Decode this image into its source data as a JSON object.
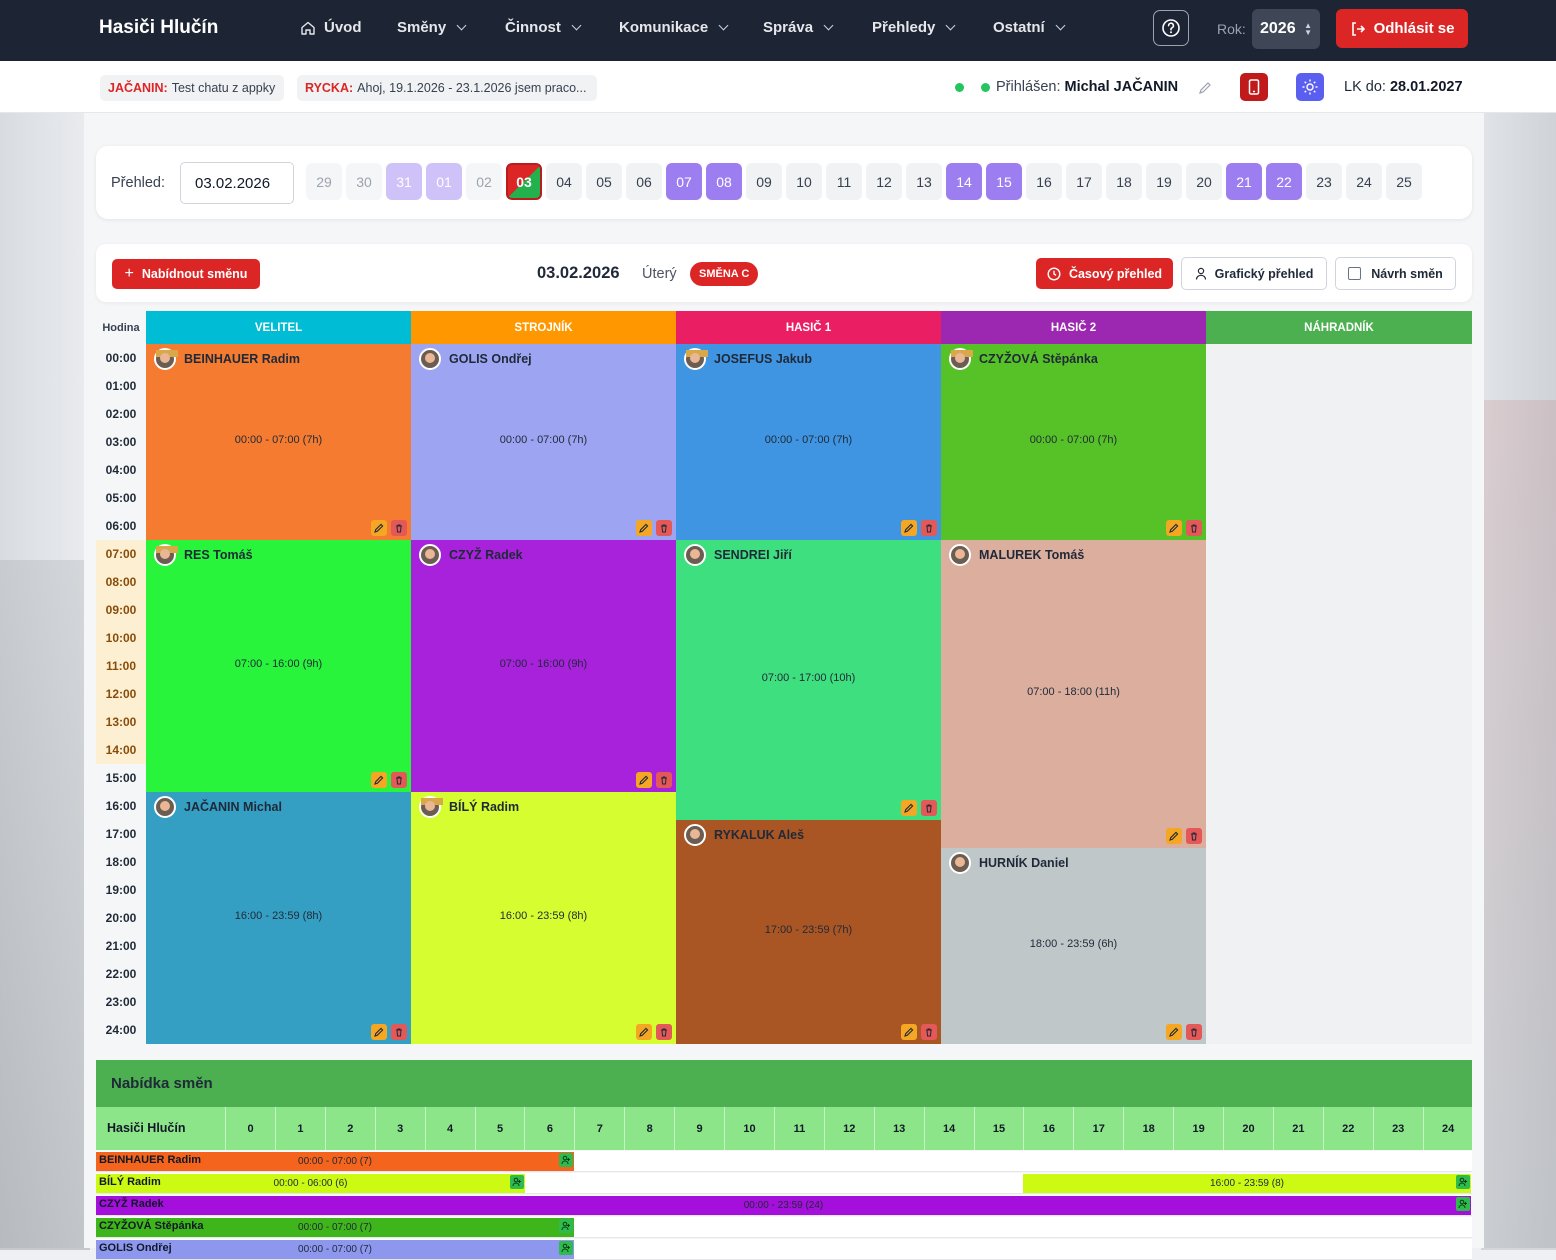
{
  "app": {
    "title": "Hasiči Hlučín"
  },
  "nav": [
    {
      "label": "Úvod",
      "icon": "home-icon",
      "dropdown": false
    },
    {
      "label": "Směny",
      "dropdown": true
    },
    {
      "label": "Činnost",
      "dropdown": true
    },
    {
      "label": "Komunikace",
      "dropdown": true
    },
    {
      "label": "Správa",
      "dropdown": true
    },
    {
      "label": "Přehledy",
      "dropdown": true
    },
    {
      "label": "Ostatní",
      "dropdown": true
    }
  ],
  "year": {
    "label": "Rok:",
    "value": "2026"
  },
  "logout_label": "Odhlásit se",
  "chat_chips": [
    {
      "author": "JAČANIN:",
      "text": "Test chatu z appky"
    },
    {
      "author": "RYCKA:",
      "text": "Ahoj, 19.1.2026 - 23.1.2026 jsem praco..."
    }
  ],
  "user": {
    "prefix": "Přihlášen:",
    "name": "Michal JAČANIN"
  },
  "lk": {
    "prefix": "LK do:",
    "value": "28.01.2027"
  },
  "overview": {
    "label": "Přehled:",
    "date": "03.02.2026",
    "days": [
      {
        "n": "29",
        "style": "muted"
      },
      {
        "n": "30",
        "style": "muted"
      },
      {
        "n": "31",
        "style": "purple-light"
      },
      {
        "n": "01",
        "style": "purple-light"
      },
      {
        "n": "02",
        "style": "muted"
      },
      {
        "n": "03",
        "style": "today"
      },
      {
        "n": "04",
        "style": ""
      },
      {
        "n": "05",
        "style": ""
      },
      {
        "n": "06",
        "style": ""
      },
      {
        "n": "07",
        "style": "purple"
      },
      {
        "n": "08",
        "style": "purple"
      },
      {
        "n": "09",
        "style": ""
      },
      {
        "n": "10",
        "style": ""
      },
      {
        "n": "11",
        "style": ""
      },
      {
        "n": "12",
        "style": ""
      },
      {
        "n": "13",
        "style": ""
      },
      {
        "n": "14",
        "style": "purple"
      },
      {
        "n": "15",
        "style": "purple"
      },
      {
        "n": "16",
        "style": ""
      },
      {
        "n": "17",
        "style": ""
      },
      {
        "n": "18",
        "style": ""
      },
      {
        "n": "19",
        "style": ""
      },
      {
        "n": "20",
        "style": ""
      },
      {
        "n": "21",
        "style": "purple"
      },
      {
        "n": "22",
        "style": "purple"
      },
      {
        "n": "23",
        "style": ""
      },
      {
        "n": "24",
        "style": ""
      },
      {
        "n": "25",
        "style": ""
      }
    ]
  },
  "toolbar": {
    "offer_label": "Nabídnout směnu",
    "date": "03.02.2026",
    "weekday": "Úterý",
    "shift_badge": "SMĚNA C",
    "time_overview_label": "Časový přehled",
    "graphic_overview_label": "Grafický přehled",
    "plan_label": "Návrh směn"
  },
  "schedule": {
    "hours_header": "Hodina",
    "hours": [
      "00:00",
      "01:00",
      "02:00",
      "03:00",
      "04:00",
      "05:00",
      "06:00",
      "07:00",
      "08:00",
      "09:00",
      "10:00",
      "11:00",
      "12:00",
      "13:00",
      "14:00",
      "15:00",
      "16:00",
      "17:00",
      "18:00",
      "19:00",
      "20:00",
      "21:00",
      "22:00",
      "23:00",
      "24:00"
    ],
    "day_hours": [
      "07:00",
      "08:00",
      "09:00",
      "10:00",
      "11:00",
      "12:00",
      "13:00",
      "14:00"
    ],
    "columns": [
      {
        "label": "VELITEL",
        "color": "#00bcd4"
      },
      {
        "label": "STROJNÍK",
        "color": "#ff9800"
      },
      {
        "label": "HASIČ 1",
        "color": "#e91e63"
      },
      {
        "label": "HASIČ 2",
        "color": "#9c27b0"
      },
      {
        "label": "NÁHRADNÍK",
        "color": "#4caf50"
      }
    ],
    "blocks": [
      {
        "col": 0,
        "start": 0,
        "end": 7,
        "name": "BEINHAUER Radim",
        "time": "00:00 - 07:00 (7h)",
        "color": "#f47b30",
        "avatar": "gold"
      },
      {
        "col": 0,
        "start": 7,
        "end": 16,
        "name": "RES Tomáš",
        "time": "07:00 - 16:00 (9h)",
        "color": "#27f43b",
        "avatar": "gold"
      },
      {
        "col": 0,
        "start": 16,
        "end": 25,
        "name": "JAČANIN Michal",
        "time": "16:00 - 23:59 (8h)",
        "color": "#359fc3",
        "avatar": ""
      },
      {
        "col": 1,
        "start": 0,
        "end": 7,
        "name": "GOLIS Ondřej",
        "time": "00:00 - 07:00 (7h)",
        "color": "#9da5f3",
        "avatar": ""
      },
      {
        "col": 1,
        "start": 7,
        "end": 16,
        "name": "CZYŽ Radek",
        "time": "07:00 - 16:00 (9h)",
        "color": "#a822dc",
        "avatar": ""
      },
      {
        "col": 1,
        "start": 16,
        "end": 25,
        "name": "BÍLÝ Radim",
        "time": "16:00 - 23:59 (8h)",
        "color": "#d6fd30",
        "avatar": "gold"
      },
      {
        "col": 2,
        "start": 0,
        "end": 7,
        "name": "JOSEFUS Jakub",
        "time": "00:00 - 07:00 (7h)",
        "color": "#3f95e1",
        "avatar": "gold"
      },
      {
        "col": 2,
        "start": 7,
        "end": 17,
        "name": "SENDREI Jiří",
        "time": "07:00 - 17:00 (10h)",
        "color": "#3edf7f",
        "avatar": ""
      },
      {
        "col": 2,
        "start": 17,
        "end": 25,
        "name": "RYKALUK Aleš",
        "time": "17:00 - 23:59 (7h)",
        "color": "#aa5624",
        "avatar": ""
      },
      {
        "col": 3,
        "start": 0,
        "end": 7,
        "name": "CZYŽOVÁ Stěpánka",
        "time": "00:00 - 07:00 (7h)",
        "color": "#57c227",
        "avatar": "gold"
      },
      {
        "col": 3,
        "start": 7,
        "end": 18,
        "name": "MALUREK Tomáš",
        "time": "07:00 - 18:00 (11h)",
        "color": "#dbae9e",
        "avatar": ""
      },
      {
        "col": 3,
        "start": 18,
        "end": 25,
        "name": "HURNÍK Daniel",
        "time": "18:00 - 23:59 (6h)",
        "color": "#bfc7c9",
        "avatar": ""
      }
    ]
  },
  "offers": {
    "title": "Nabídka směn",
    "org_label": "Hasiči Hlučín",
    "ticks": [
      "0",
      "1",
      "2",
      "3",
      "4",
      "5",
      "6",
      "7",
      "8",
      "9",
      "10",
      "11",
      "12",
      "13",
      "14",
      "15",
      "16",
      "17",
      "18",
      "19",
      "20",
      "21",
      "22",
      "23",
      "24"
    ],
    "rows": [
      {
        "name": "BEINHAUER Radim",
        "bars": [
          {
            "start": 0,
            "end": 7,
            "label": "00:00 - 07:00 (7)",
            "color": "#f4641d"
          }
        ]
      },
      {
        "name": "BÍLÝ Radim",
        "bars": [
          {
            "start": 0,
            "end": 6,
            "label": "00:00 - 06:00 (6)",
            "color": "#ccfa12"
          },
          {
            "start": 16,
            "end": 24,
            "label": "16:00 - 23:59 (8)",
            "color": "#ccfa12"
          }
        ]
      },
      {
        "name": "CZYŽ Radek",
        "bars": [
          {
            "start": 0,
            "end": 24,
            "label": "00:00 - 23:59 (24)",
            "color": "#a50fdc"
          }
        ]
      },
      {
        "name": "CZYŽOVÁ Stěpánka",
        "bars": [
          {
            "start": 0,
            "end": 7,
            "label": "00:00 - 07:00 (7)",
            "color": "#3fb51c"
          }
        ]
      },
      {
        "name": "GOLIS Ondřej",
        "bars": [
          {
            "start": 0,
            "end": 7,
            "label": "00:00 - 07:00 (7)",
            "color": "#8d97ee"
          }
        ]
      }
    ]
  }
}
